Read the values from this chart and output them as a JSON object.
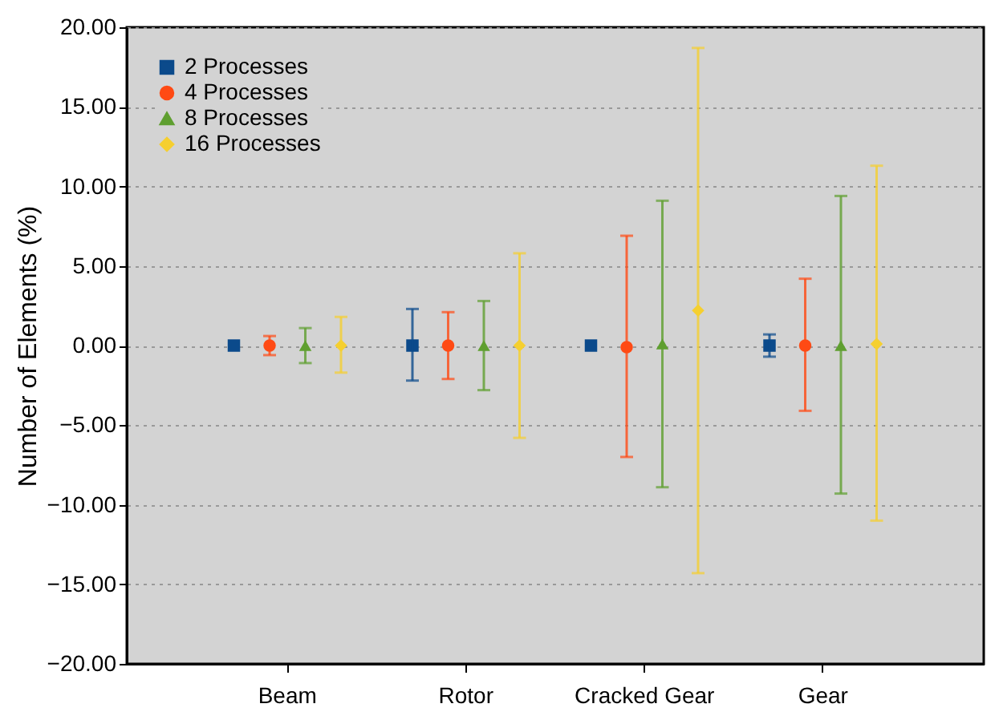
{
  "chart_data": {
    "type": "scatter",
    "ylabel": "Number of Elements (%)",
    "categories": [
      "Beam",
      "Rotor",
      "Cracked Gear",
      "Gear"
    ],
    "series": [
      {
        "name": "2 Processes",
        "color": "#0b4a8b",
        "marker": "square",
        "values": [
          0,
          0,
          0,
          0
        ],
        "errors": [
          null,
          [
            -2.2,
            2.3
          ],
          null,
          [
            -0.7,
            0.7
          ]
        ]
      },
      {
        "name": "4 Processes",
        "color": "#ff4a14",
        "marker": "circle",
        "values": [
          0,
          0,
          -0.1,
          0
        ],
        "errors": [
          [
            -0.6,
            0.6
          ],
          [
            -2.1,
            2.1
          ],
          [
            -7.0,
            6.9
          ],
          [
            -4.1,
            4.2
          ]
        ]
      },
      {
        "name": "8 Processes",
        "color": "#5f9f30",
        "marker": "triangle",
        "values": [
          0,
          0,
          0.1,
          0
        ],
        "errors": [
          [
            -1.1,
            1.1
          ],
          [
            -2.8,
            2.8
          ],
          [
            -8.9,
            9.1
          ],
          [
            -9.3,
            9.4
          ]
        ]
      },
      {
        "name": "16 Processes",
        "color": "#f5cf30",
        "marker": "diamond",
        "values": [
          0,
          0,
          2.2,
          0.1
        ],
        "errors": [
          [
            -1.7,
            1.8
          ],
          [
            -5.8,
            5.8
          ],
          [
            -14.3,
            18.7
          ],
          [
            -11.0,
            11.3
          ]
        ]
      }
    ],
    "ylim": [
      -20,
      20
    ],
    "yticks": [
      {
        "value": -20,
        "label": "−20.00"
      },
      {
        "value": -15,
        "label": "−15.00"
      },
      {
        "value": -10,
        "label": "−10.00"
      },
      {
        "value": -5,
        "label": "−5.00"
      },
      {
        "value": 0,
        "label": "0.00"
      },
      {
        "value": 5,
        "label": "5.00"
      },
      {
        "value": 10,
        "label": "10.00"
      },
      {
        "value": 15,
        "label": "15.00"
      },
      {
        "value": 20,
        "label": "20.00"
      }
    ],
    "grid": "y",
    "legend": "top left"
  }
}
